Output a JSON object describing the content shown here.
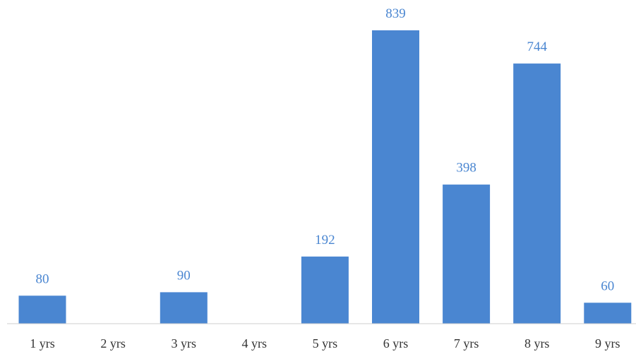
{
  "chart_data": {
    "type": "bar",
    "title": "",
    "xlabel": "",
    "ylabel": "",
    "categories": [
      "1 yrs",
      "2 yrs",
      "3 yrs",
      "4 yrs",
      "5 yrs",
      "6 yrs",
      "7 yrs",
      "8 yrs",
      "9 yrs"
    ],
    "values": [
      80,
      null,
      90,
      null,
      192,
      839,
      398,
      744,
      60
    ],
    "value_labels": [
      "80",
      "",
      "90",
      "",
      "192",
      "839",
      "398",
      "744",
      "60"
    ],
    "ylim": [
      0,
      839
    ],
    "grid": false,
    "legend": "none",
    "bar_color": "#4a86d1",
    "label_color": "#4a86d1",
    "tick_color": "#333333",
    "axis_color": "#cfcfcf"
  }
}
